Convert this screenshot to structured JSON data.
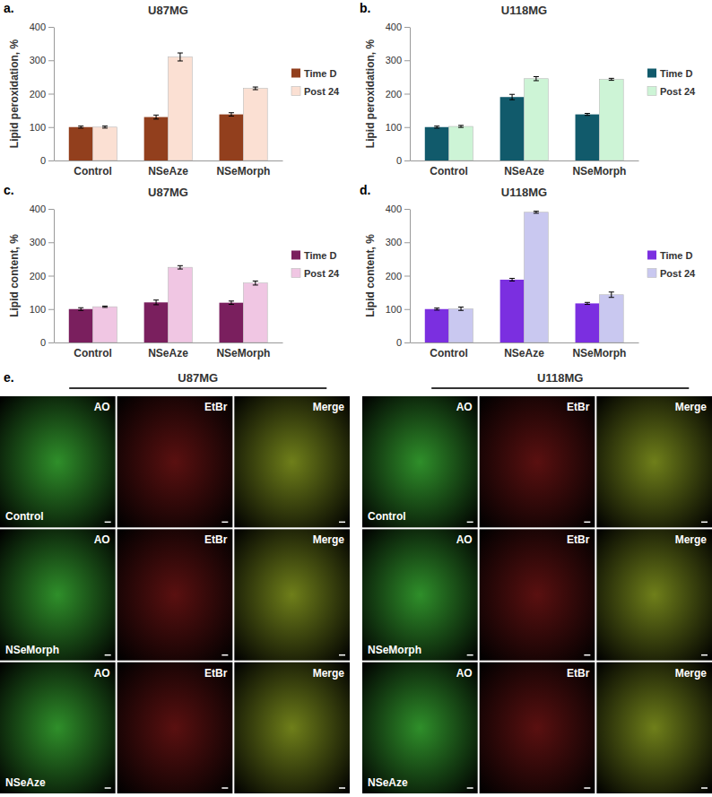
{
  "chart_data": [
    {
      "type": "bar",
      "panel_label": "a.",
      "title": "U87MG",
      "y_label": "Lipid peroxidation, %",
      "categories": [
        "Control",
        "NSeAze",
        "NSeMorph"
      ],
      "series": [
        {
          "name": "Time D",
          "color": "#923f1d",
          "values": [
            100,
            130,
            138
          ],
          "errors": [
            3,
            6,
            5
          ]
        },
        {
          "name": "Post 24",
          "color": "#fbe0d3",
          "values": [
            100,
            310,
            216
          ],
          "errors": [
            3,
            12,
            4
          ]
        }
      ],
      "ylim": [
        0,
        400
      ],
      "yticks": [
        0,
        100,
        200,
        300,
        400
      ],
      "legend": "right"
    },
    {
      "type": "bar",
      "panel_label": "b.",
      "title": "U118MG",
      "y_label": "Lipid peroxidation, %",
      "categories": [
        "Control",
        "NSeAze",
        "NSeMorph"
      ],
      "series": [
        {
          "name": "Time D",
          "color": "#115a6b",
          "values": [
            100,
            190,
            138
          ],
          "errors": [
            3,
            8,
            3
          ]
        },
        {
          "name": "Post 24",
          "color": "#cdf4d6",
          "values": [
            102,
            245,
            243
          ],
          "errors": [
            3,
            6,
            3
          ]
        }
      ],
      "ylim": [
        0,
        400
      ],
      "yticks": [
        0,
        100,
        200,
        300,
        400
      ],
      "legend": "right"
    },
    {
      "type": "bar",
      "panel_label": "c.",
      "title": "U87MG",
      "y_label": "Lipid content, %",
      "categories": [
        "Control",
        "NSeAze",
        "NSeMorph"
      ],
      "series": [
        {
          "name": "Time D",
          "color": "#7a1f5e",
          "values": [
            100,
            120,
            119
          ],
          "errors": [
            4,
            7,
            5
          ]
        },
        {
          "name": "Post 24",
          "color": "#f0c6e3",
          "values": [
            107,
            225,
            178
          ],
          "errors": [
            2,
            5,
            6
          ]
        }
      ],
      "ylim": [
        0,
        400
      ],
      "yticks": [
        0,
        100,
        200,
        300,
        400
      ],
      "legend": "right"
    },
    {
      "type": "bar",
      "panel_label": "d.",
      "title": "U118MG",
      "y_label": "Lipid content, %",
      "categories": [
        "Control",
        "NSeAze",
        "NSeMorph"
      ],
      "series": [
        {
          "name": "Time D",
          "color": "#7b2fe0",
          "values": [
            100,
            188,
            117
          ],
          "errors": [
            3,
            4,
            3
          ]
        },
        {
          "name": "Post 24",
          "color": "#c9c8f0",
          "values": [
            101,
            390,
            143
          ],
          "errors": [
            5,
            3,
            8
          ]
        }
      ],
      "ylim": [
        0,
        400
      ],
      "yticks": [
        0,
        100,
        200,
        300,
        400
      ],
      "legend": "right"
    }
  ],
  "panel_e": {
    "panel_label": "e.",
    "groups": [
      {
        "title": "U87MG"
      },
      {
        "title": "U118MG"
      }
    ],
    "channels": [
      "AO",
      "EtBr",
      "Merge"
    ],
    "treatments": [
      "Control",
      "NSeMorph",
      "NSeAze"
    ]
  }
}
